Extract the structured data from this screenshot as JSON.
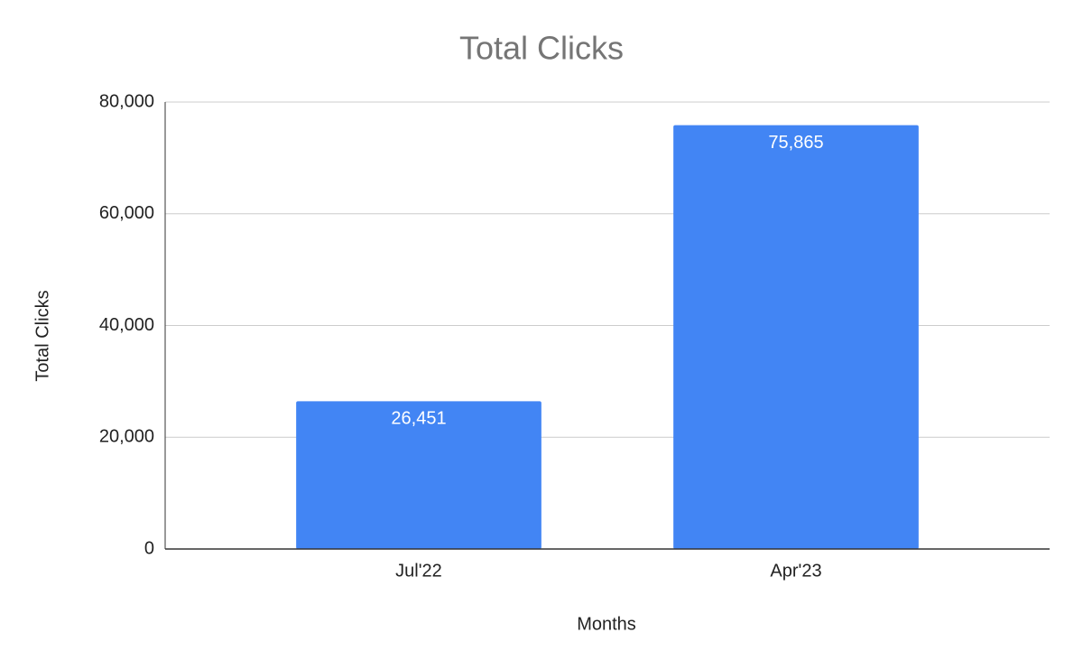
{
  "chart_data": {
    "type": "bar",
    "title": "Total Clicks",
    "x_label": "Months",
    "y_label": "Total Clicks",
    "categories": [
      "Jul'22",
      "Apr'23"
    ],
    "values": [
      26451,
      75865
    ],
    "value_labels": [
      "26,451",
      "75,865"
    ],
    "color": "#4285f4",
    "ylim": [
      0,
      80000
    ],
    "yticks": [
      0,
      {
        "value": 20000,
        "label": "20,000"
      },
      {
        "value": 40000,
        "label": "40,000"
      },
      {
        "value": 60000,
        "label": "60,000"
      },
      {
        "value": 80000,
        "label": "80,000"
      }
    ],
    "grid": true
  }
}
